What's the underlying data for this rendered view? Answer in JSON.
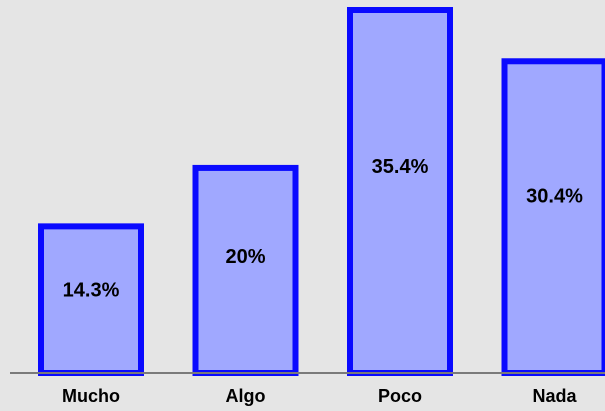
{
  "chart_data": {
    "type": "bar",
    "categories": [
      "Mucho",
      "Algo",
      "Poco",
      "Nada"
    ],
    "values": [
      14.3,
      20,
      35.4,
      30.4
    ],
    "data_labels": [
      "14.3%",
      "20%",
      "35.4%",
      "30.4%"
    ],
    "title": "",
    "xlabel": "",
    "ylabel": "",
    "ylim": [
      0,
      35.4
    ],
    "grid": false,
    "legend": "none",
    "colors": {
      "bar_fill": "#a0a8ff",
      "bar_stroke": "#0a0aff",
      "background": "#e5e5e5",
      "axis": "#7a7a7a"
    }
  }
}
